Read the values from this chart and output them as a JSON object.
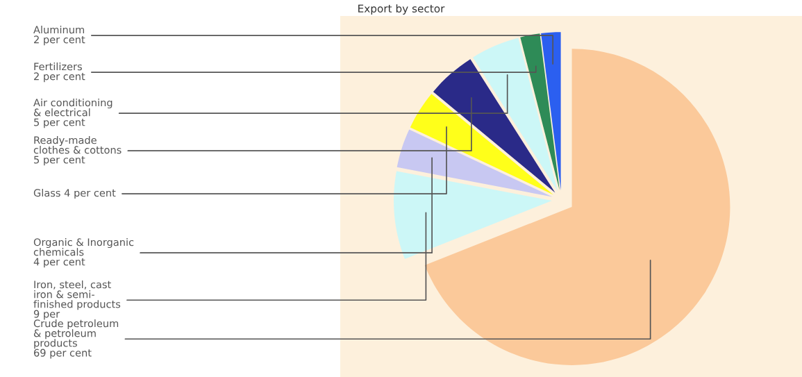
{
  "chart_data": {
    "type": "pie",
    "title": "Export by sector",
    "categories": [
      "Aluminum\n2 per cent",
      "Fertilizers\n2 per cent",
      "Air conditioning\n& electrical\n5 per cent",
      "Ready-made\nclothes & cottons\n5 per cent",
      "Glass 4 per cent",
      "Organic & Inorganic\nchemicals\n4 per cent",
      "Iron, steel, cast\niron & semi-\nfinished products\n9 per",
      "Crude petroleum\n& petroleum\nproducts\n69 per cent"
    ],
    "values": [
      2,
      2,
      5,
      5,
      4,
      4,
      9,
      69
    ],
    "colors": [
      "#2b5ff0",
      "#2e8b57",
      "#ccf7f7",
      "#2a2a88",
      "#ffff1a",
      "#c8c8f2",
      "#ccf7f7",
      "#fbc99a"
    ],
    "legend": false
  }
}
